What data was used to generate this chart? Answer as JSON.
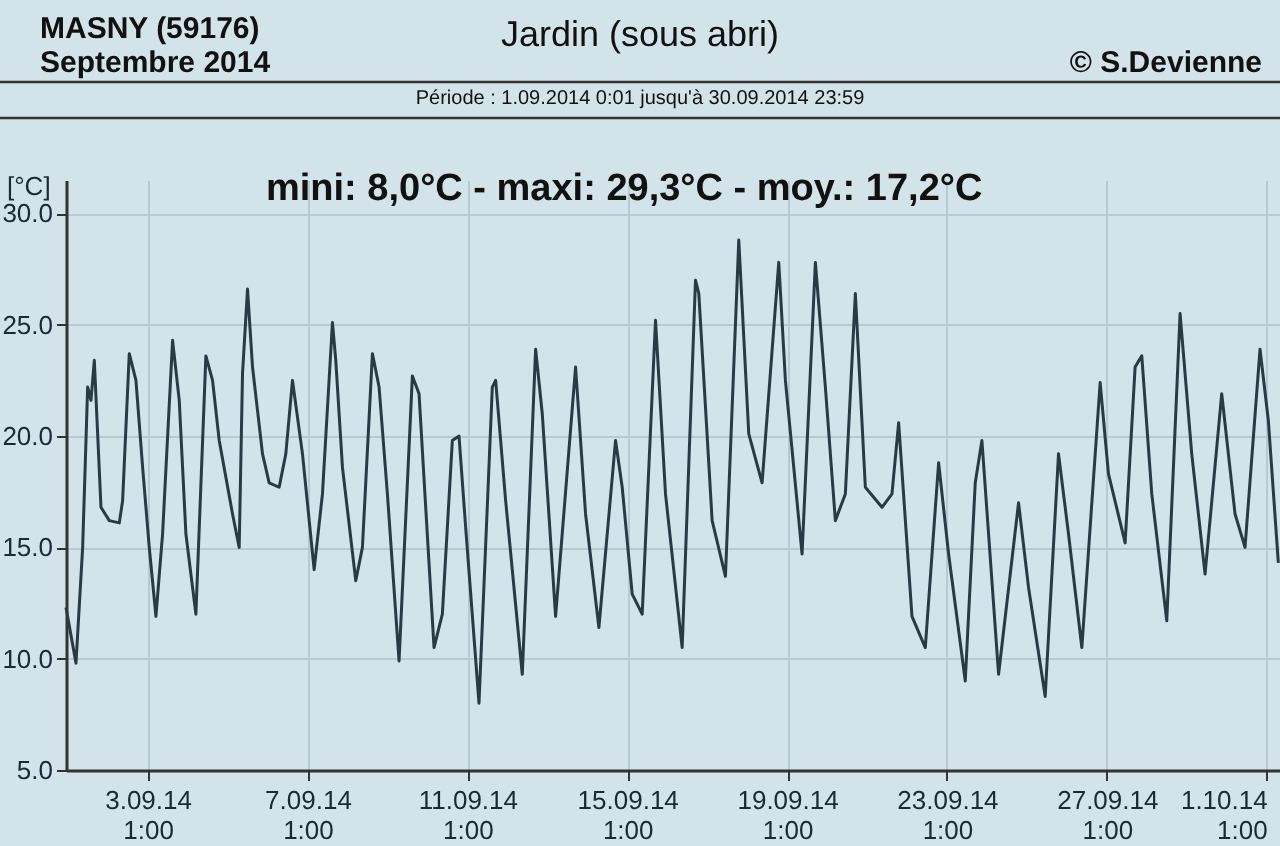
{
  "chart_data": {
    "type": "line",
    "title": "Jardin (sous abri)",
    "subtitle": "Période :  1.09.2014   0:01   jusqu'à  30.09.2014   23:59",
    "ylabel": "[°C]",
    "annotations": [
      "MASNY (59176)",
      "Septembre  2014",
      "© S.Devienne",
      "mini:  8,0°C - maxi: 29,3°C - moy.: 17,2°C"
    ],
    "x": [
      "2014-09-01T00:00",
      "2014-09-01T06:00",
      "2014-09-01T10:00",
      "2014-09-01T13:00",
      "2014-09-01T15:00",
      "2014-09-01T17:00",
      "2014-09-01T19:00",
      "2014-09-01T21:00",
      "2014-09-02T02:00",
      "2014-09-02T08:00",
      "2014-09-02T10:00",
      "2014-09-02T14:00",
      "2014-09-02T18:00",
      "2014-09-02T22:00",
      "2014-09-03T02:00",
      "2014-09-03T06:00",
      "2014-09-03T10:00",
      "2014-09-03T16:00",
      "2014-09-03T20:00",
      "2014-09-04T00:00",
      "2014-09-04T06:00",
      "2014-09-04T12:00",
      "2014-09-04T16:00",
      "2014-09-04T20:00",
      "2014-09-05T04:00",
      "2014-09-05T08:00",
      "2014-09-05T10:00",
      "2014-09-05T13:00",
      "2014-09-05T16:00",
      "2014-09-05T22:00",
      "2014-09-06T02:00",
      "2014-09-06T08:00",
      "2014-09-06T12:00",
      "2014-09-06T16:00",
      "2014-09-06T22:00",
      "2014-09-07T05:00",
      "2014-09-07T10:00",
      "2014-09-07T16:00",
      "2014-09-07T18:00",
      "2014-09-07T22:00",
      "2014-09-08T06:00",
      "2014-09-08T10:00",
      "2014-09-08T16:00",
      "2014-09-08T20:00",
      "2014-09-09T01:00",
      "2014-09-09T08:00",
      "2014-09-09T16:00",
      "2014-09-09T20:00",
      "2014-09-10T00:00",
      "2014-09-10T05:00",
      "2014-09-10T10:00",
      "2014-09-10T16:00",
      "2014-09-10T20:00",
      "2014-09-11T00:00",
      "2014-09-11T08:00",
      "2014-09-11T16:00",
      "2014-09-11T18:00",
      "2014-09-12T00:00",
      "2014-09-12T10:00",
      "2014-09-12T18:00",
      "2014-09-12T22:00",
      "2014-09-13T06:00",
      "2014-09-13T18:00",
      "2014-09-14T00:00",
      "2014-09-14T08:00",
      "2014-09-14T18:00",
      "2014-09-14T22:00",
      "2014-09-15T04:00",
      "2014-09-15T10:00",
      "2014-09-15T18:00",
      "2014-09-16T00:00",
      "2014-09-16T10:00",
      "2014-09-16T18:00",
      "2014-09-16T20:00",
      "2014-09-17T04:00",
      "2014-09-17T12:00",
      "2014-09-17T20:00",
      "2014-09-18T02:00",
      "2014-09-18T10:00",
      "2014-09-18T20:00",
      "2014-09-19T00:00",
      "2014-09-19T10:00",
      "2014-09-19T18:00",
      "2014-09-20T00:00",
      "2014-09-20T06:00",
      "2014-09-20T12:00",
      "2014-09-20T18:00",
      "2014-09-21T00:00",
      "2014-09-21T10:00",
      "2014-09-21T16:00",
      "2014-09-21T20:00",
      "2014-09-22T04:00",
      "2014-09-22T12:00",
      "2014-09-22T20:00",
      "2014-09-23T02:00",
      "2014-09-23T12:00",
      "2014-09-23T18:00",
      "2014-09-23T22:00",
      "2014-09-24T08:00",
      "2014-09-24T20:00",
      "2014-09-25T02:00",
      "2014-09-25T12:00",
      "2014-09-25T20:00",
      "2014-09-26T02:00",
      "2014-09-26T10:00",
      "2014-09-26T21:00",
      "2014-09-27T02:00",
      "2014-09-27T12:00",
      "2014-09-27T18:00",
      "2014-09-27T22:00",
      "2014-09-28T04:00",
      "2014-09-28T13:00",
      "2014-09-28T21:00",
      "2014-09-29T04:00",
      "2014-09-29T12:00",
      "2014-09-29T22:00",
      "2014-09-30T06:00",
      "2014-09-30T12:00",
      "2014-09-30T21:00",
      "2014-10-01T02:00",
      "2014-10-01T08:00"
    ],
    "series": [
      {
        "color": "#2a3a45",
        "values": [
          12.3,
          9.8,
          15.0,
          22.2,
          21.6,
          23.4,
          20.1,
          16.8,
          16.2,
          16.1,
          17.1,
          23.7,
          22.5,
          18.6,
          15.0,
          11.9,
          15.6,
          24.3,
          21.6,
          15.6,
          12.0,
          23.6,
          22.5,
          19.8,
          16.5,
          15.0,
          22.8,
          26.6,
          23.1,
          19.2,
          17.9,
          17.7,
          19.2,
          22.5,
          19.2,
          14.0,
          17.4,
          25.1,
          23.4,
          18.6,
          13.5,
          15.0,
          23.7,
          22.2,
          17.4,
          9.9,
          22.7,
          21.9,
          16.8,
          10.5,
          12.0,
          19.8,
          20.0,
          15.9,
          8.0,
          22.2,
          22.5,
          17.1,
          9.3,
          23.9,
          21.0,
          11.9,
          23.1,
          16.5,
          11.4,
          19.8,
          17.7,
          12.9,
          12.0,
          25.2,
          17.4,
          10.5,
          27.0,
          26.4,
          16.2,
          13.7,
          28.8,
          20.1,
          17.9,
          27.8,
          22.5,
          14.7,
          27.8,
          22.2,
          16.2,
          17.4,
          26.4,
          17.7,
          16.8,
          17.4,
          20.6,
          11.9,
          10.5,
          18.8,
          14.7,
          9.0,
          17.9,
          19.8,
          9.3,
          17.0,
          13.2,
          8.3,
          19.2,
          15.6,
          10.5,
          22.4,
          18.3,
          15.2,
          23.1,
          23.6,
          17.4,
          11.7,
          25.5,
          19.2,
          13.8,
          21.9,
          16.5,
          15.0,
          23.9,
          20.7,
          14.3
        ]
      }
    ],
    "xlim": [
      "2014-09-01T00:00",
      "2014-10-01T09:00"
    ],
    "xticks": [
      {
        "value": "2014-09-03T01:00",
        "label": "3.09.14\n1:00"
      },
      {
        "value": "2014-09-07T01:00",
        "label": "7.09.14\n1:00"
      },
      {
        "value": "2014-09-11T01:00",
        "label": "11.09.14\n1:00"
      },
      {
        "value": "2014-09-15T01:00",
        "label": "15.09.14\n1:00"
      },
      {
        "value": "2014-09-19T01:00",
        "label": "19.09.14\n1:00"
      },
      {
        "value": "2014-09-23T01:00",
        "label": "23.09.14\n1:00"
      },
      {
        "value": "2014-09-27T01:00",
        "label": "27.09.14\n1:00"
      },
      {
        "value": "2014-10-01T01:00",
        "label": "1.10.14\n1:00"
      }
    ],
    "ylim": [
      5,
      31.5
    ],
    "yticks": [
      {
        "value": 5,
        "label": "5.0"
      },
      {
        "value": 10,
        "label": "10.0"
      },
      {
        "value": 15,
        "label": "15.0"
      },
      {
        "value": 20,
        "label": "20.0"
      },
      {
        "value": 25,
        "label": "25.0"
      },
      {
        "value": 30,
        "label": "30.0"
      }
    ],
    "grid": true,
    "marker": "none",
    "line_style": "solid"
  }
}
